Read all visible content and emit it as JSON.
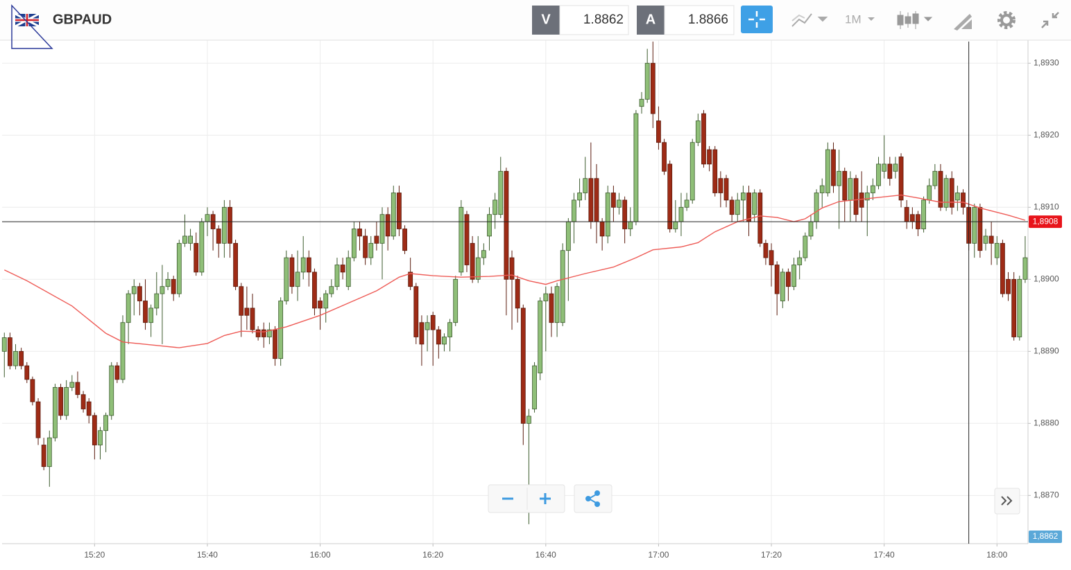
{
  "toolbar": {
    "symbol": "GBPAUD",
    "bid_label": "V",
    "bid": "1.8862",
    "ask_label": "A",
    "ask": "1.8866",
    "timeframe": "1M"
  },
  "chart_data": {
    "type": "candlestick",
    "x": [
      904,
      905,
      906,
      907,
      908,
      909,
      910,
      911,
      912,
      913,
      914,
      915,
      916,
      917,
      918,
      919,
      920,
      921,
      922,
      923,
      924,
      925,
      926,
      927,
      928,
      929,
      930,
      931,
      932,
      933,
      934,
      935,
      936,
      937,
      938,
      939,
      940,
      941,
      942,
      943,
      944,
      945,
      946,
      947,
      948,
      949,
      950,
      951,
      952,
      953,
      954,
      955,
      956,
      957,
      958,
      959,
      960,
      961,
      962,
      963,
      964,
      965,
      966,
      967,
      968,
      969,
      970,
      971,
      972,
      973,
      974,
      975,
      976,
      977,
      978,
      979,
      980,
      981,
      982,
      983,
      984,
      985,
      986,
      987,
      988,
      989,
      990,
      991,
      992,
      993,
      994,
      995,
      996,
      997,
      998,
      999,
      1000,
      1001,
      1002,
      1003,
      1004,
      1005,
      1006,
      1007,
      1008,
      1009,
      1010,
      1011,
      1012,
      1013,
      1014,
      1015,
      1016,
      1017,
      1018,
      1019,
      1020,
      1021,
      1022,
      1023,
      1024,
      1025,
      1026,
      1027,
      1028,
      1029,
      1030,
      1031,
      1032,
      1033,
      1034,
      1035,
      1036,
      1037,
      1038,
      1039,
      1040,
      1041,
      1042,
      1043,
      1044,
      1045,
      1046,
      1047,
      1048,
      1049,
      1050,
      1051,
      1052,
      1053,
      1054,
      1055,
      1056,
      1057,
      1058,
      1059,
      1060,
      1061,
      1062,
      1063,
      1064,
      1065,
      1066,
      1067,
      1068,
      1069,
      1070,
      1071,
      1072,
      1073,
      1074,
      1075,
      1076,
      1077,
      1078,
      1079,
      1080,
      1081,
      1082,
      1083,
      1084,
      1085
    ],
    "open": [
      1.889,
      1.88919,
      1.8888,
      1.889,
      1.8888,
      1.88861,
      1.8883,
      1.8877,
      1.8874,
      1.8878,
      1.8885,
      1.88811,
      1.8885,
      1.88857,
      1.8884,
      1.8883,
      1.88811,
      1.8877,
      1.8879,
      1.88811,
      1.8888,
      1.88861,
      1.8894,
      1.8898,
      1.8899,
      1.8897,
      1.8894,
      1.8896,
      1.8898,
      1.8899,
      1.89,
      1.8898,
      1.8905,
      1.8905,
      1.8905,
      1.8901,
      1.8908,
      1.8909,
      1.8907,
      1.8905,
      1.891,
      1.8905,
      1.8899,
      1.8896,
      1.8896,
      1.8893,
      1.8893,
      1.8892,
      1.8893,
      1.8889,
      1.8897,
      1.8903,
      1.8899,
      1.8901,
      1.8903,
      1.8901,
      1.8897,
      1.8896,
      1.8898,
      1.8899,
      1.8902,
      1.8899,
      1.8903,
      1.8907,
      1.8906,
      1.8903,
      1.8906,
      1.8905,
      1.8909,
      1.8906,
      1.8912,
      1.8907,
      1.8901,
      1.8899,
      1.8894,
      1.8893,
      1.8895,
      1.8893,
      1.8891,
      1.8892,
      1.8894,
      1.8901,
      1.8909,
      1.8905,
      1.89,
      1.8903,
      1.8906,
      1.8909,
      1.8909,
      1.8915,
      1.8903,
      1.89,
      1.8896,
      1.888,
      1.8882,
      1.8887,
      1.8897,
      1.8898,
      1.8894,
      1.8894,
      1.8904,
      1.8908,
      1.8911,
      1.8912,
      1.8914,
      1.8914,
      1.8908,
      1.8906,
      1.8912,
      1.891,
      1.8911,
      1.8907,
      1.8908,
      1.8924,
      1.8925,
      1.893,
      1.8922,
      1.8919,
      1.8916,
      1.8907,
      1.8908,
      1.891,
      1.8911,
      1.8919,
      1.8923,
      1.8918,
      1.8918,
      1.8914,
      1.8914,
      1.8911,
      1.8909,
      1.8911,
      1.8912,
      1.8909,
      1.8912,
      1.8905,
      1.8904,
      1.8902,
      1.8897,
      1.8901,
      1.8899,
      1.8902,
      1.8903,
      1.8906,
      1.8908,
      1.8912,
      1.8912,
      1.8918,
      1.8913,
      1.8915,
      1.8911,
      1.8914,
      1.8912,
      1.8911,
      1.8912,
      1.8913,
      1.8915,
      1.8916,
      1.8915,
      1.8917,
      1.891,
      1.8909,
      1.8909,
      1.8907,
      1.8911,
      1.8913,
      1.8915,
      1.891,
      1.8914,
      1.8911,
      1.8912,
      1.891,
      1.8905,
      1.891,
      1.8905,
      1.8906,
      1.8903,
      1.8905,
      1.89,
      1.89,
      1.8892,
      1.89
    ],
    "high": [
      1.88926,
      1.88926,
      1.8891,
      1.88905,
      1.88885,
      1.88865,
      1.88835,
      1.8878,
      1.8879,
      1.88855,
      1.88855,
      1.8886,
      1.88867,
      1.88872,
      1.88845,
      1.88835,
      1.88815,
      1.88795,
      1.88815,
      1.88885,
      1.88885,
      1.8895,
      1.88985,
      1.89,
      1.88995,
      1.89,
      1.88965,
      1.8901,
      1.8902,
      1.8901,
      1.89005,
      1.89055,
      1.8909,
      1.8907,
      1.89065,
      1.89085,
      1.891,
      1.89095,
      1.89075,
      1.8911,
      1.8911,
      1.89055,
      1.88995,
      1.8899,
      1.8898,
      1.88935,
      1.8894,
      1.8894,
      1.88935,
      1.88975,
      1.8904,
      1.89035,
      1.8904,
      1.8906,
      1.8904,
      1.89015,
      1.88975,
      1.88985,
      1.89,
      1.8903,
      1.8903,
      1.8904,
      1.8908,
      1.8908,
      1.8907,
      1.8906,
      1.8908,
      1.891,
      1.891,
      1.8913,
      1.8913,
      1.89075,
      1.8903,
      1.88995,
      1.8895,
      1.8895,
      1.88955,
      1.88935,
      1.88925,
      1.88945,
      1.89005,
      1.8911,
      1.89095,
      1.8906,
      1.8906,
      1.8905,
      1.891,
      1.8912,
      1.8917,
      1.89155,
      1.8904,
      1.89005,
      1.88965,
      1.8882,
      1.88885,
      1.88975,
      1.8899,
      1.8899,
      1.88995,
      1.8905,
      1.89085,
      1.8912,
      1.8914,
      1.8917,
      1.8919,
      1.8916,
      1.89085,
      1.8913,
      1.8913,
      1.8912,
      1.89115,
      1.891,
      1.89235,
      1.8926,
      1.8932,
      1.8933,
      1.8924,
      1.89195,
      1.89165,
      1.8911,
      1.8912,
      1.8912,
      1.89195,
      1.8923,
      1.89235,
      1.89185,
      1.89185,
      1.8915,
      1.89145,
      1.89115,
      1.8912,
      1.8913,
      1.8913,
      1.89125,
      1.89125,
      1.89055,
      1.8905,
      1.89025,
      1.89015,
      1.89015,
      1.8903,
      1.8904,
      1.89065,
      1.8909,
      1.89125,
      1.8914,
      1.8919,
      1.8919,
      1.8918,
      1.89155,
      1.8915,
      1.89145,
      1.8915,
      1.8913,
      1.8914,
      1.8917,
      1.892,
      1.8917,
      1.8917,
      1.89175,
      1.8911,
      1.891,
      1.89095,
      1.89115,
      1.8914,
      1.8916,
      1.8916,
      1.89145,
      1.8915,
      1.8913,
      1.89125,
      1.89105,
      1.89105,
      1.89105,
      1.8907,
      1.8908,
      1.8906,
      1.89055,
      1.8901,
      1.8901,
      1.89005,
      1.8906
    ],
    "low": [
      1.88864,
      1.88875,
      1.88875,
      1.88875,
      1.88856,
      1.88825,
      1.8877,
      1.88735,
      1.88712,
      1.88775,
      1.88805,
      1.88805,
      1.88845,
      1.88835,
      1.88815,
      1.888,
      1.8875,
      1.8875,
      1.8876,
      1.88805,
      1.88856,
      1.88856,
      1.8891,
      1.8895,
      1.8895,
      1.8893,
      1.8892,
      1.8895,
      1.8891,
      1.88985,
      1.8897,
      1.88975,
      1.89045,
      1.8904,
      1.89005,
      1.89005,
      1.8906,
      1.8904,
      1.8903,
      1.8903,
      1.8903,
      1.88985,
      1.8892,
      1.8893,
      1.88925,
      1.88915,
      1.88905,
      1.8891,
      1.8888,
      1.8888,
      1.88965,
      1.8898,
      1.8897,
      1.89,
      1.8899,
      1.8895,
      1.8893,
      1.8894,
      1.88975,
      1.88985,
      1.89,
      1.88985,
      1.89025,
      1.8904,
      1.8902,
      1.8902,
      1.8904,
      1.89,
      1.8904,
      1.89055,
      1.8906,
      1.89035,
      1.88985,
      1.8891,
      1.8888,
      1.889,
      1.8888,
      1.8889,
      1.889,
      1.889,
      1.88935,
      1.89005,
      1.8901,
      1.88995,
      1.88995,
      1.8902,
      1.8904,
      1.8907,
      1.89085,
      1.8895,
      1.8893,
      1.8894,
      1.8877,
      1.8866,
      1.88815,
      1.8886,
      1.889,
      1.8892,
      1.8892,
      1.88935,
      1.8897,
      1.8905,
      1.891,
      1.8911,
      1.8907,
      1.8905,
      1.8904,
      1.8905,
      1.8908,
      1.8909,
      1.8905,
      1.8906,
      1.89075,
      1.8923,
      1.89245,
      1.8921,
      1.8918,
      1.89145,
      1.89065,
      1.89065,
      1.8906,
      1.89095,
      1.89105,
      1.89185,
      1.89155,
      1.8915,
      1.89115,
      1.891,
      1.891,
      1.8908,
      1.8908,
      1.8908,
      1.8906,
      1.8908,
      1.89045,
      1.8902,
      1.8899,
      1.8895,
      1.8896,
      1.8897,
      1.88985,
      1.89,
      1.89025,
      1.89055,
      1.8907,
      1.891,
      1.89115,
      1.8912,
      1.8907,
      1.8908,
      1.8908,
      1.8908,
      1.8908,
      1.8906,
      1.8911,
      1.89125,
      1.8914,
      1.8913,
      1.8914,
      1.891,
      1.8907,
      1.8907,
      1.8906,
      1.89065,
      1.89105,
      1.89125,
      1.89095,
      1.89095,
      1.8909,
      1.89095,
      1.8909,
      1.8904,
      1.8903,
      1.8903,
      1.8904,
      1.8902,
      1.8902,
      1.88975,
      1.8897,
      1.88915,
      1.88915,
      1.88995
    ],
    "close": [
      1.88919,
      1.8888,
      1.889,
      1.8888,
      1.88861,
      1.8883,
      1.8878,
      1.8874,
      1.8878,
      1.8885,
      1.88811,
      1.8885,
      1.88857,
      1.8884,
      1.8882,
      1.88811,
      1.8877,
      1.8879,
      1.88811,
      1.8888,
      1.88861,
      1.8894,
      1.8898,
      1.8899,
      1.8897,
      1.8894,
      1.8896,
      1.8898,
      1.8899,
      1.89,
      1.8898,
      1.8905,
      1.8906,
      1.8906,
      1.8901,
      1.8908,
      1.8909,
      1.8907,
      1.8905,
      1.891,
      1.8905,
      1.8899,
      1.8895,
      1.8895,
      1.8893,
      1.8892,
      1.8892,
      1.8893,
      1.8889,
      1.8897,
      1.8903,
      1.8899,
      1.8901,
      1.8903,
      1.8901,
      1.8896,
      1.8896,
      1.8898,
      1.8899,
      1.8902,
      1.8901,
      1.8903,
      1.8907,
      1.8906,
      1.8903,
      1.8905,
      1.8905,
      1.8909,
      1.8906,
      1.8912,
      1.8907,
      1.8904,
      1.8899,
      1.8892,
      1.8891,
      1.8894,
      1.8893,
      1.8891,
      1.8892,
      1.8894,
      1.89,
      1.891,
      1.8902,
      1.89,
      1.8903,
      1.8904,
      1.8909,
      1.8911,
      1.8915,
      1.89,
      1.89,
      1.8896,
      1.888,
      1.8881,
      1.8888,
      1.8897,
      1.8898,
      1.8894,
      1.8899,
      1.8904,
      1.8908,
      1.8911,
      1.8912,
      1.8914,
      1.8908,
      1.8908,
      1.8906,
      1.8912,
      1.891,
      1.8911,
      1.8907,
      1.8908,
      1.8923,
      1.8925,
      1.893,
      1.8923,
      1.8919,
      1.8915,
      1.8907,
      1.8908,
      1.891,
      1.8911,
      1.8919,
      1.8922,
      1.8916,
      1.8916,
      1.8912,
      1.8912,
      1.8911,
      1.8909,
      1.8911,
      1.8912,
      1.8908,
      1.8912,
      1.8905,
      1.8903,
      1.8902,
      1.8898,
      1.8901,
      1.8899,
      1.8902,
      1.8903,
      1.8906,
      1.8908,
      1.8912,
      1.8913,
      1.8918,
      1.8913,
      1.8915,
      1.8911,
      1.8914,
      1.8909,
      1.891,
      1.8912,
      1.8913,
      1.8916,
      1.8916,
      1.8914,
      1.8916,
      1.8911,
      1.8908,
      1.8908,
      1.8907,
      1.8911,
      1.8913,
      1.8915,
      1.891,
      1.8914,
      1.891,
      1.8912,
      1.891,
      1.8905,
      1.891,
      1.8904,
      1.8906,
      1.8905,
      1.8905,
      1.8898,
      1.8898,
      1.8892,
      1.89,
      1.8903
    ],
    "up_color": "#8fbf78",
    "down_color": "#9e2b16",
    "up_edge": "#3b5a2c",
    "down_edge": "#5a1a0c",
    "moving_average": {
      "color": "#ee5a55",
      "x": [
        904,
        908,
        916,
        922,
        925,
        930,
        935,
        940,
        943,
        946,
        950,
        954,
        960,
        965,
        970,
        974,
        976,
        980,
        985,
        990,
        994,
        997,
        1000,
        1002,
        1007,
        1012,
        1016,
        1019,
        1024,
        1027,
        1030,
        1034,
        1038,
        1041,
        1044,
        1046,
        1049,
        1052,
        1057,
        1063,
        1066,
        1070,
        1074,
        1077,
        1082,
        1085
      ],
      "values": [
        1.89013,
        1.88998,
        1.88963,
        1.88925,
        1.88913,
        1.88909,
        1.88905,
        1.88911,
        1.88922,
        1.88928,
        1.88927,
        1.88934,
        1.8895,
        1.88967,
        1.88984,
        1.89003,
        1.89008,
        1.89005,
        1.89003,
        1.89004,
        1.89006,
        1.88998,
        1.88993,
        1.88998,
        1.89008,
        1.89017,
        1.8903,
        1.89041,
        1.89045,
        1.89051,
        1.89066,
        1.8908,
        1.89088,
        1.89086,
        1.8908,
        1.89084,
        1.89099,
        1.89108,
        1.89112,
        1.89117,
        1.89113,
        1.89107,
        1.89107,
        1.89099,
        1.89089,
        1.89082
      ]
    },
    "crosshair": {
      "x": 1075,
      "y": {
        "value": 1.8908,
        "label": "1,8908"
      },
      "color": "#e8141b"
    },
    "bid_marker": {
      "value": 1.8862,
      "label": "1,8862",
      "color": "#5aa8d8"
    },
    "xlim": [
      903.6,
      1085.5
    ],
    "ylim": [
      1.88633,
      1.89332
    ],
    "xticks": [
      {
        "value": 920,
        "label": "15:20"
      },
      {
        "value": 940,
        "label": "15:40"
      },
      {
        "value": 960,
        "label": "16:00"
      },
      {
        "value": 980,
        "label": "16:20"
      },
      {
        "value": 1000,
        "label": "16:40"
      },
      {
        "value": 1020,
        "label": "17:00"
      },
      {
        "value": 1040,
        "label": "17:20"
      },
      {
        "value": 1060,
        "label": "17:40"
      },
      {
        "value": 1080,
        "label": "18:00"
      }
    ],
    "yticks": [
      {
        "value": 1.887,
        "label": "1,8870"
      },
      {
        "value": 1.888,
        "label": "1,8880"
      },
      {
        "value": 1.889,
        "label": "1,8890"
      },
      {
        "value": 1.89,
        "label": "1,8900"
      },
      {
        "value": 1.891,
        "label": "1,8910"
      },
      {
        "value": 1.892,
        "label": "1,8920"
      },
      {
        "value": 1.893,
        "label": "1,8930"
      }
    ],
    "grid": true
  }
}
